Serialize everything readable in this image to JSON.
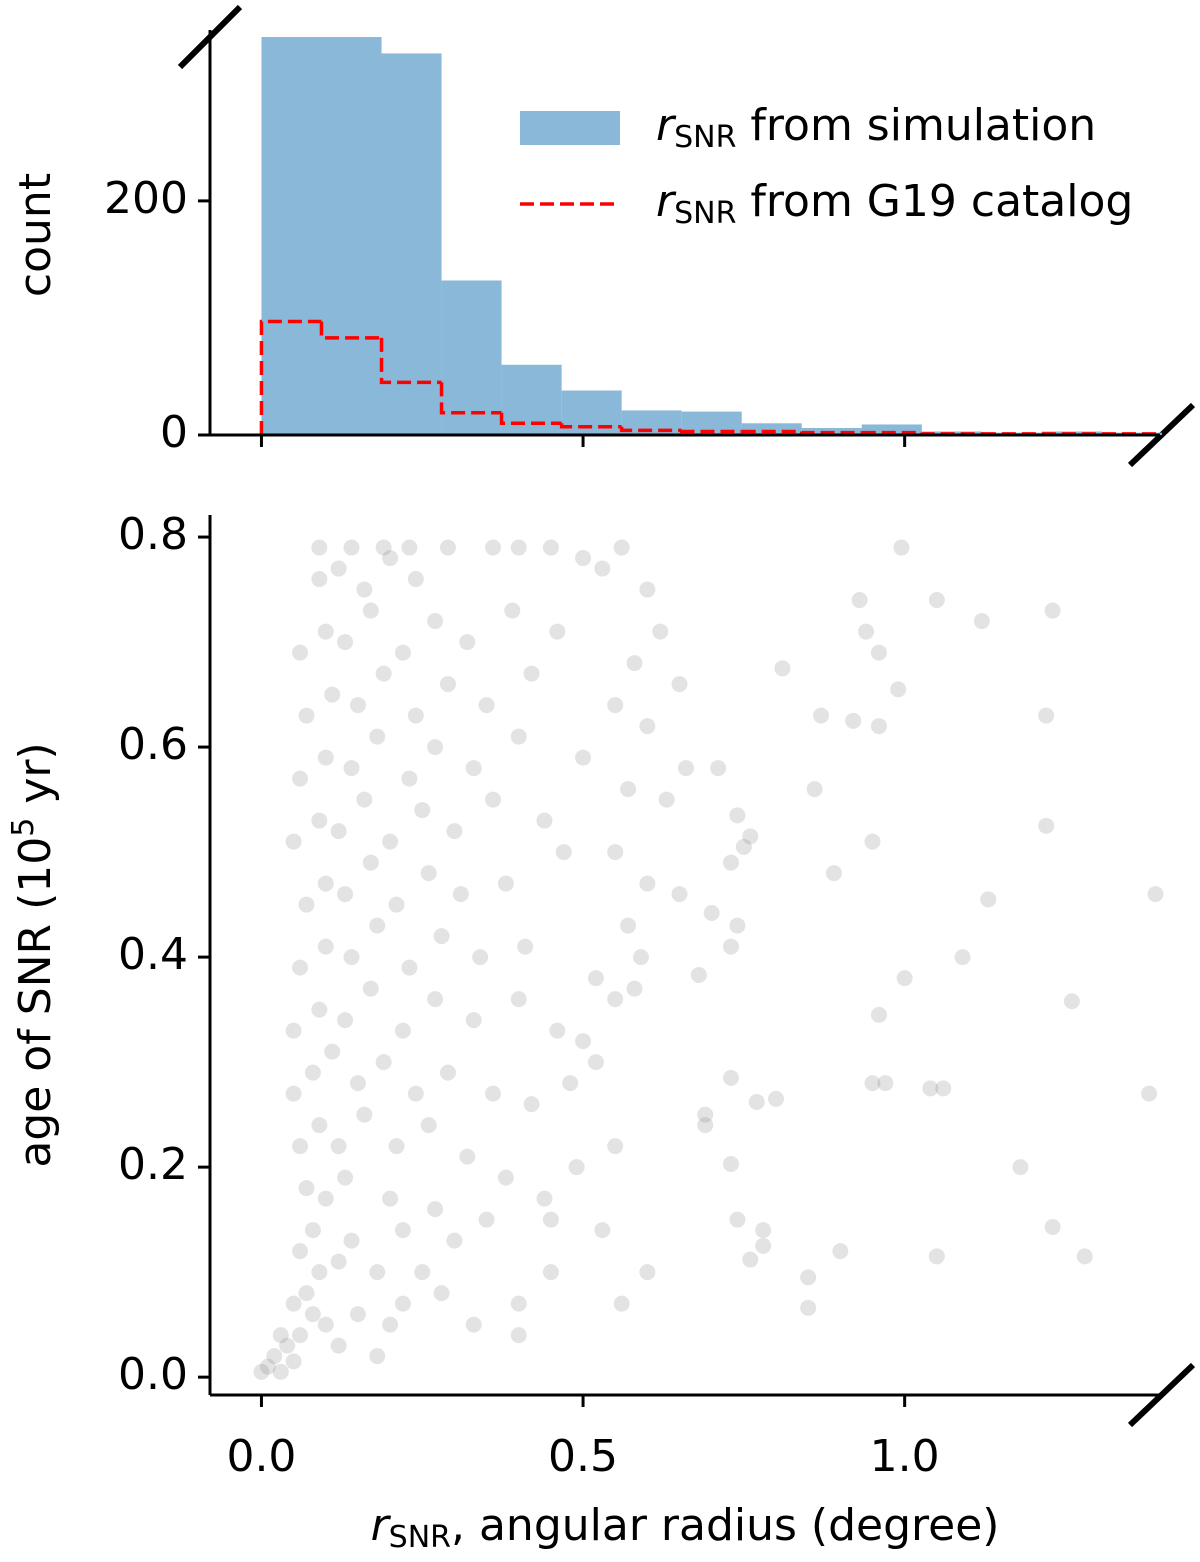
{
  "chart_data": [
    {
      "type": "histogram",
      "ylabel": "count",
      "bins": [
        0,
        0.0933,
        0.1867,
        0.28,
        0.3733,
        0.4667,
        0.56,
        0.6533,
        0.7467,
        0.84,
        0.9333,
        1.0267,
        1.12,
        1.2133,
        1.3067,
        1.4
      ],
      "series": [
        {
          "name": [
            "r",
            "SNR",
            " from simulation"
          ],
          "color": "#8ab8d9",
          "style": "bar",
          "values": [
            340,
            340,
            326,
            132,
            60,
            38,
            21,
            20,
            10,
            6,
            9,
            3,
            2,
            3,
            2
          ]
        },
        {
          "name": [
            "r",
            "SNR",
            " from G19 catalog"
          ],
          "color": "#ff0000",
          "style": "step",
          "values": [
            97,
            83,
            45,
            19,
            10,
            7,
            4,
            3,
            3,
            2,
            2,
            1,
            1,
            1,
            1
          ]
        }
      ],
      "xlim": [
        -0.08,
        1.397
      ],
      "xticks": [
        0,
        0.5,
        1
      ],
      "ylim": [
        0,
        346
      ],
      "yticks": [
        0,
        200
      ],
      "legend": "upper right"
    },
    {
      "type": "scatter",
      "xlabel": [
        "r",
        "SNR",
        ", angular radius (degree)"
      ],
      "ylabel": [
        "age of SNR (10",
        "5",
        " yr)"
      ],
      "color": "#808080",
      "opacity": 0.22,
      "x": [
        0.0,
        0.01,
        0.02,
        0.03,
        0.04,
        0.05,
        0.06,
        0.03,
        0.08,
        0.07,
        0.05,
        0.1,
        0.12,
        0.15,
        0.18,
        0.2,
        0.22,
        0.09,
        0.06,
        0.12,
        0.08,
        0.14,
        0.18,
        0.25,
        0.3,
        0.22,
        0.1,
        0.07,
        0.13,
        0.2,
        0.27,
        0.35,
        0.4,
        0.33,
        0.28,
        0.06,
        0.09,
        0.12,
        0.16,
        0.21,
        0.26,
        0.32,
        0.38,
        0.44,
        0.05,
        0.08,
        0.11,
        0.15,
        0.19,
        0.24,
        0.29,
        0.36,
        0.42,
        0.48,
        0.05,
        0.09,
        0.13,
        0.17,
        0.22,
        0.27,
        0.33,
        0.4,
        0.46,
        0.06,
        0.1,
        0.14,
        0.18,
        0.23,
        0.28,
        0.34,
        0.41,
        0.52,
        0.07,
        0.1,
        0.13,
        0.17,
        0.21,
        0.26,
        0.31,
        0.38,
        0.47,
        0.05,
        0.09,
        0.12,
        0.16,
        0.2,
        0.25,
        0.3,
        0.36,
        0.44,
        0.06,
        0.1,
        0.14,
        0.18,
        0.23,
        0.27,
        0.33,
        0.4,
        0.5,
        0.07,
        0.11,
        0.15,
        0.19,
        0.24,
        0.29,
        0.35,
        0.42,
        0.06,
        0.1,
        0.13,
        0.17,
        0.22,
        0.27,
        0.32,
        0.39,
        0.46,
        0.09,
        0.12,
        0.16,
        0.2,
        0.24,
        0.29,
        0.36,
        0.4,
        0.45,
        0.09,
        0.14,
        0.19,
        0.23,
        0.5,
        0.53,
        0.56,
        0.6,
        0.62,
        0.58,
        0.65,
        0.55,
        0.6,
        0.66,
        0.57,
        0.63,
        0.55,
        0.6,
        0.65,
        0.57,
        0.59,
        0.55,
        0.58,
        0.5,
        0.52,
        0.55,
        0.49,
        0.45,
        0.53,
        0.6,
        0.45,
        0.56,
        0.4,
        0.995,
        1.05,
        1.12,
        1.23,
        0.93,
        0.94,
        0.96,
        0.99,
        0.87,
        0.92,
        0.96,
        1.22,
        0.81,
        0.86,
        1.22,
        0.89,
        0.95,
        1.39,
        1.13,
        1.09,
        1.0,
        0.96,
        1.26,
        0.97,
        0.95,
        1.04,
        1.06,
        1.38,
        0.8,
        1.18,
        1.23,
        1.28,
        1.05,
        0.9,
        0.85,
        0.85,
        0.78,
        0.78,
        0.76,
        0.74,
        0.73,
        0.69,
        0.69,
        0.73,
        0.77,
        0.68,
        0.73,
        0.74,
        0.7,
        0.73,
        0.75,
        0.74,
        0.76,
        0.71
      ],
      "values": [
        0.005,
        0.01,
        0.02,
        0.005,
        0.03,
        0.015,
        0.04,
        0.04,
        0.06,
        0.08,
        0.07,
        0.05,
        0.03,
        0.06,
        0.02,
        0.05,
        0.07,
        0.1,
        0.12,
        0.11,
        0.14,
        0.13,
        0.1,
        0.1,
        0.13,
        0.14,
        0.17,
        0.18,
        0.19,
        0.17,
        0.16,
        0.15,
        0.07,
        0.05,
        0.08,
        0.22,
        0.24,
        0.22,
        0.25,
        0.22,
        0.24,
        0.21,
        0.19,
        0.17,
        0.27,
        0.29,
        0.31,
        0.28,
        0.3,
        0.27,
        0.29,
        0.27,
        0.26,
        0.28,
        0.33,
        0.35,
        0.34,
        0.37,
        0.33,
        0.36,
        0.34,
        0.36,
        0.33,
        0.39,
        0.41,
        0.4,
        0.43,
        0.39,
        0.42,
        0.4,
        0.41,
        0.38,
        0.45,
        0.47,
        0.46,
        0.49,
        0.45,
        0.48,
        0.46,
        0.47,
        0.5,
        0.51,
        0.53,
        0.52,
        0.55,
        0.51,
        0.54,
        0.52,
        0.55,
        0.53,
        0.57,
        0.59,
        0.58,
        0.61,
        0.57,
        0.6,
        0.58,
        0.61,
        0.59,
        0.63,
        0.65,
        0.64,
        0.67,
        0.63,
        0.66,
        0.64,
        0.67,
        0.69,
        0.71,
        0.7,
        0.73,
        0.69,
        0.72,
        0.7,
        0.73,
        0.71,
        0.76,
        0.77,
        0.75,
        0.78,
        0.76,
        0.79,
        0.79,
        0.79,
        0.79,
        0.79,
        0.79,
        0.79,
        0.79,
        0.78,
        0.77,
        0.79,
        0.75,
        0.71,
        0.68,
        0.66,
        0.64,
        0.62,
        0.58,
        0.56,
        0.55,
        0.5,
        0.47,
        0.46,
        0.43,
        0.4,
        0.36,
        0.37,
        0.32,
        0.3,
        0.22,
        0.2,
        0.15,
        0.14,
        0.1,
        0.1,
        0.07,
        0.04,
        0.79,
        0.74,
        0.72,
        0.73,
        0.74,
        0.71,
        0.69,
        0.655,
        0.63,
        0.625,
        0.62,
        0.63,
        0.675,
        0.56,
        0.525,
        0.48,
        0.51,
        0.46,
        0.455,
        0.4,
        0.38,
        0.345,
        0.358,
        0.28,
        0.28,
        0.275,
        0.275,
        0.27,
        0.265,
        0.2,
        0.143,
        0.115,
        0.115,
        0.12,
        0.095,
        0.066,
        0.14,
        0.125,
        0.112,
        0.15,
        0.203,
        0.25,
        0.24,
        0.285,
        0.262,
        0.383,
        0.41,
        0.43,
        0.442,
        0.49,
        0.505,
        0.535,
        0.515,
        0.58
      ],
      "xlim": [
        -0.08,
        1.397
      ],
      "xticks": [
        {
          "value": 0,
          "label": "0.0"
        },
        {
          "value": 0.5,
          "label": "0.5"
        },
        {
          "value": 1,
          "label": "1.0"
        }
      ],
      "ylim": [
        -0.017,
        0.821
      ],
      "yticks": [
        {
          "value": 0,
          "label": "0.0"
        },
        {
          "value": 0.2,
          "label": "0.2"
        },
        {
          "value": 0.4,
          "label": "0.4"
        },
        {
          "value": 0.6,
          "label": "0.6"
        },
        {
          "value": 0.8,
          "label": "0.8"
        }
      ]
    }
  ]
}
